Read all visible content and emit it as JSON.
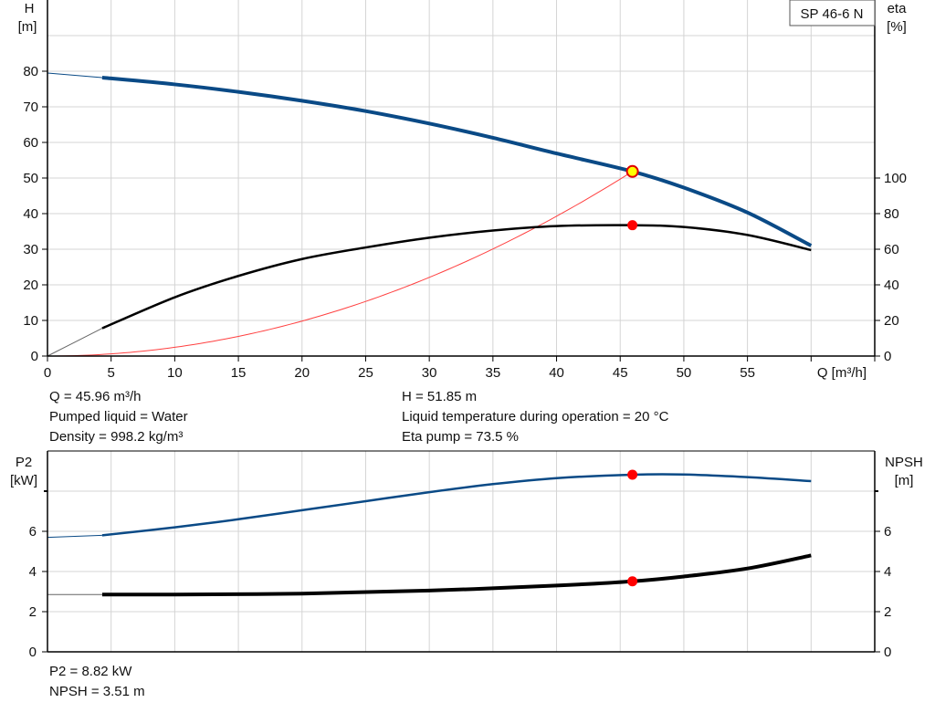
{
  "chart_data": [
    {
      "type": "line",
      "title": "SP 46-6 N",
      "xlabel": "Q [m³/h]",
      "ylabel": "H\n[m]",
      "y2label": "eta\n[%]",
      "xlim": [
        0,
        65
      ],
      "ylim": [
        0,
        100
      ],
      "y2lim": [
        0,
        200
      ],
      "grid": true,
      "x_ticks": [
        "0",
        "5",
        "10",
        "15",
        "20",
        "25",
        "30",
        "35",
        "40",
        "45",
        "50",
        "55"
      ],
      "y_ticks": [
        "0",
        "10",
        "20",
        "30",
        "40",
        "50",
        "60",
        "70",
        "80"
      ],
      "y2_ticks": [
        "0",
        "20",
        "40",
        "60",
        "80",
        "100"
      ],
      "series": [
        {
          "id": "H",
          "color": "#0a4a86",
          "axis": "left",
          "extrapolated_to": 4.3,
          "x": [
            0,
            4.3,
            10,
            15,
            20,
            25,
            30,
            35,
            40,
            45.96,
            50,
            55,
            60
          ],
          "y": [
            79.5,
            78.2,
            76.3,
            74.2,
            71.7,
            68.8,
            65.3,
            61.3,
            56.9,
            51.85,
            47.3,
            40.3,
            31
          ]
        },
        {
          "id": "eta",
          "color": "#000000",
          "axis": "right",
          "extrapolated_to": 4.3,
          "x": [
            0,
            4.3,
            10,
            15,
            20,
            25,
            30,
            35,
            40,
            45.96,
            50,
            55,
            60
          ],
          "y": [
            0,
            15.6,
            33,
            45,
            54.5,
            61,
            66.5,
            70.5,
            73,
            73.5,
            72.5,
            68,
            59.5
          ]
        },
        {
          "id": "system",
          "color": "#ff4040",
          "axis": "left",
          "type": "parabola",
          "x": [
            0,
            5,
            10,
            15,
            20,
            25,
            30,
            35,
            40,
            45.96
          ],
          "y": [
            0,
            0.61,
            2.45,
            5.52,
            9.82,
            15.34,
            22.09,
            30.07,
            39.28,
            51.85
          ]
        }
      ],
      "operating_point": {
        "Q": 45.96,
        "H": 51.85,
        "eta": 73.5
      }
    },
    {
      "type": "line",
      "ylabel": "P2\n[kW]",
      "y2label": "NPSH\n[m]",
      "xlim": [
        0,
        65
      ],
      "ylim": [
        0,
        10
      ],
      "grid": true,
      "y_ticks": [
        "0",
        "2",
        "4",
        "6"
      ],
      "y2_ticks": [
        "0",
        "2",
        "4",
        "6"
      ],
      "series": [
        {
          "id": "P2",
          "color": "#0a4a86",
          "axis": "left",
          "extrapolated_to": 4.3,
          "x": [
            0,
            4.3,
            10,
            15,
            20,
            25,
            30,
            35,
            40,
            45.96,
            50,
            55,
            60
          ],
          "y": [
            5.7,
            5.8,
            6.2,
            6.6,
            7.05,
            7.5,
            7.95,
            8.35,
            8.65,
            8.82,
            8.83,
            8.7,
            8.5
          ]
        },
        {
          "id": "NPSH",
          "color": "#000000",
          "axis": "right",
          "extrapolated_to": 4.3,
          "x": [
            0,
            4.3,
            10,
            20,
            30,
            40,
            45.96,
            50,
            55,
            60
          ],
          "y": [
            2.85,
            2.85,
            2.85,
            2.9,
            3.05,
            3.3,
            3.51,
            3.75,
            4.15,
            4.8
          ]
        }
      ],
      "operating_point": {
        "Q": 45.96,
        "P2": 8.82,
        "NPSH": 3.51
      }
    }
  ],
  "info_top": {
    "q": "Q = 45.96 m³/h",
    "liquid": "Pumped liquid = Water",
    "density": "Density = 998.2 kg/m³",
    "h": "H = 51.85 m",
    "temp": "Liquid temperature during operation = 20 °C",
    "eta": "Eta pump = 73.5 %"
  },
  "info_bottom": {
    "p2": "P2 = 8.82 kW",
    "npsh": "NPSH = 3.51 m"
  },
  "labels": {
    "h_name": "H",
    "h_unit": "[m]",
    "eta_name": "eta",
    "eta_unit": "[%]",
    "p2_name": "P2",
    "p2_unit": "[kW]",
    "npsh_name": "NPSH",
    "npsh_unit": "[m]",
    "q_axis": "Q [m³/h]",
    "model": "SP 46-6 N"
  }
}
